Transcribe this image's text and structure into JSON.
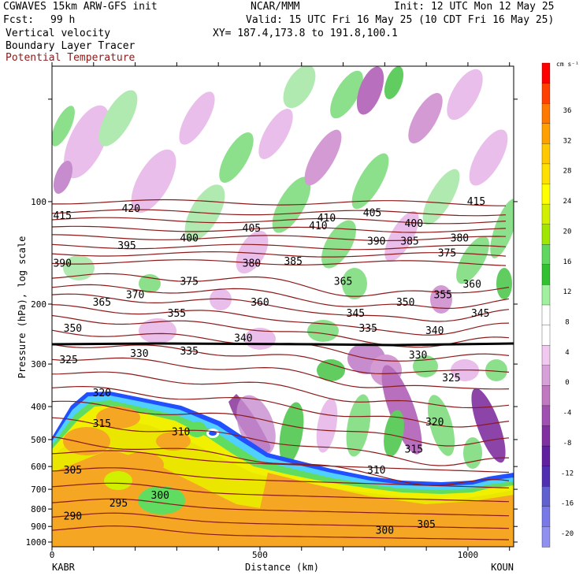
{
  "header": {
    "model": "CGWAVES 15km ARW-GFS init",
    "org": "NCAR/MMM",
    "init": "Init: 12 UTC Mon 12 May 25",
    "fcst_label": "Fcst:",
    "fcst_value": "99 h",
    "valid": "Valid: 15 UTC Fri 16 May 25 (10 CDT Fri 16 May 25)",
    "field1": "Vertical velocity",
    "xy": "XY= 187.4,173.8 to 191.8,100.1",
    "field2": "Boundary Layer Tracer",
    "field3": "Potential Temperature"
  },
  "colors": {
    "theta_contour": "#8b1a1a",
    "terrain": "#f5a623",
    "positive_w": "#6cd66c",
    "negative_w": "#c878c8"
  },
  "chart_data": {
    "type": "heatmap",
    "xlabel": "Distance (km)",
    "ylabel": "Pressure (hPa), log scale",
    "x_ticks": [
      "0",
      "500",
      "1000"
    ],
    "y_ticks": [
      "100",
      "200",
      "300",
      "400",
      "500",
      "600",
      "700",
      "800",
      "900",
      "1000"
    ],
    "x_range": [
      0,
      1110
    ],
    "y_range_hpa": [
      1000,
      40
    ],
    "y_scale": "log",
    "endpoints": {
      "left": "KABR",
      "right": "KOUN"
    },
    "colorbar": {
      "unit": "cm s⁻¹",
      "ticks": [
        "36",
        "32",
        "28",
        "24",
        "20",
        "16",
        "12",
        "8",
        "4",
        "0",
        "-4",
        "-8",
        "-12",
        "-16",
        "-20"
      ],
      "colors": [
        "#ff0000",
        "#ff4000",
        "#ff7800",
        "#ffa000",
        "#ffc800",
        "#ffe000",
        "#ffff00",
        "#d0f000",
        "#a0e600",
        "#60d860",
        "#30c030",
        "#a0f0a0",
        "#ffffff",
        "#ffffff",
        "#f0c8f0",
        "#d8a0d8",
        "#c078c0",
        "#a050b0",
        "#8030a0",
        "#6020a0",
        "#5030b0",
        "#6060d0",
        "#7878e8",
        "#9090f0"
      ]
    },
    "theta_labels": [
      {
        "value": "415",
        "x": 25,
        "p": 110
      },
      {
        "value": "420",
        "x": 190,
        "p": 105
      },
      {
        "value": "405",
        "x": 480,
        "p": 120
      },
      {
        "value": "410",
        "x": 660,
        "p": 112
      },
      {
        "value": "405",
        "x": 770,
        "p": 108
      },
      {
        "value": "400",
        "x": 870,
        "p": 116
      },
      {
        "value": "415",
        "x": 1020,
        "p": 100
      },
      {
        "value": "395",
        "x": 180,
        "p": 135
      },
      {
        "value": "400",
        "x": 330,
        "p": 128
      },
      {
        "value": "410",
        "x": 640,
        "p": 118
      },
      {
        "value": "390",
        "x": 780,
        "p": 131
      },
      {
        "value": "385",
        "x": 860,
        "p": 131
      },
      {
        "value": "380",
        "x": 980,
        "p": 128
      },
      {
        "value": "375",
        "x": 950,
        "p": 142
      },
      {
        "value": "390",
        "x": 25,
        "p": 152
      },
      {
        "value": "375",
        "x": 330,
        "p": 172
      },
      {
        "value": "380",
        "x": 480,
        "p": 152
      },
      {
        "value": "385",
        "x": 580,
        "p": 150
      },
      {
        "value": "365",
        "x": 700,
        "p": 172
      },
      {
        "value": "360",
        "x": 1010,
        "p": 175
      },
      {
        "value": "370",
        "x": 200,
        "p": 188
      },
      {
        "value": "365",
        "x": 120,
        "p": 198
      },
      {
        "value": "355",
        "x": 300,
        "p": 213
      },
      {
        "value": "360",
        "x": 500,
        "p": 198
      },
      {
        "value": "345",
        "x": 730,
        "p": 213
      },
      {
        "value": "350",
        "x": 850,
        "p": 198
      },
      {
        "value": "355",
        "x": 940,
        "p": 188
      },
      {
        "value": "345",
        "x": 1030,
        "p": 213
      },
      {
        "value": "350",
        "x": 50,
        "p": 236
      },
      {
        "value": "340",
        "x": 460,
        "p": 252
      },
      {
        "value": "335",
        "x": 760,
        "p": 236
      },
      {
        "value": "340",
        "x": 920,
        "p": 240
      },
      {
        "value": "335",
        "x": 330,
        "p": 275
      },
      {
        "value": "330",
        "x": 210,
        "p": 280
      },
      {
        "value": "325",
        "x": 40,
        "p": 292
      },
      {
        "value": "330",
        "x": 880,
        "p": 283
      },
      {
        "value": "325",
        "x": 960,
        "p": 330
      },
      {
        "value": "320",
        "x": 120,
        "p": 365
      },
      {
        "value": "320",
        "x": 920,
        "p": 445
      },
      {
        "value": "315",
        "x": 120,
        "p": 450
      },
      {
        "value": "310",
        "x": 310,
        "p": 475
      },
      {
        "value": "315",
        "x": 870,
        "p": 535
      },
      {
        "value": "305",
        "x": 50,
        "p": 615
      },
      {
        "value": "310",
        "x": 780,
        "p": 615
      },
      {
        "value": "300",
        "x": 260,
        "p": 730
      },
      {
        "value": "295",
        "x": 160,
        "p": 770
      },
      {
        "value": "290",
        "x": 50,
        "p": 840
      },
      {
        "value": "305",
        "x": 900,
        "p": 890
      },
      {
        "value": "300",
        "x": 800,
        "p": 925
      }
    ]
  }
}
